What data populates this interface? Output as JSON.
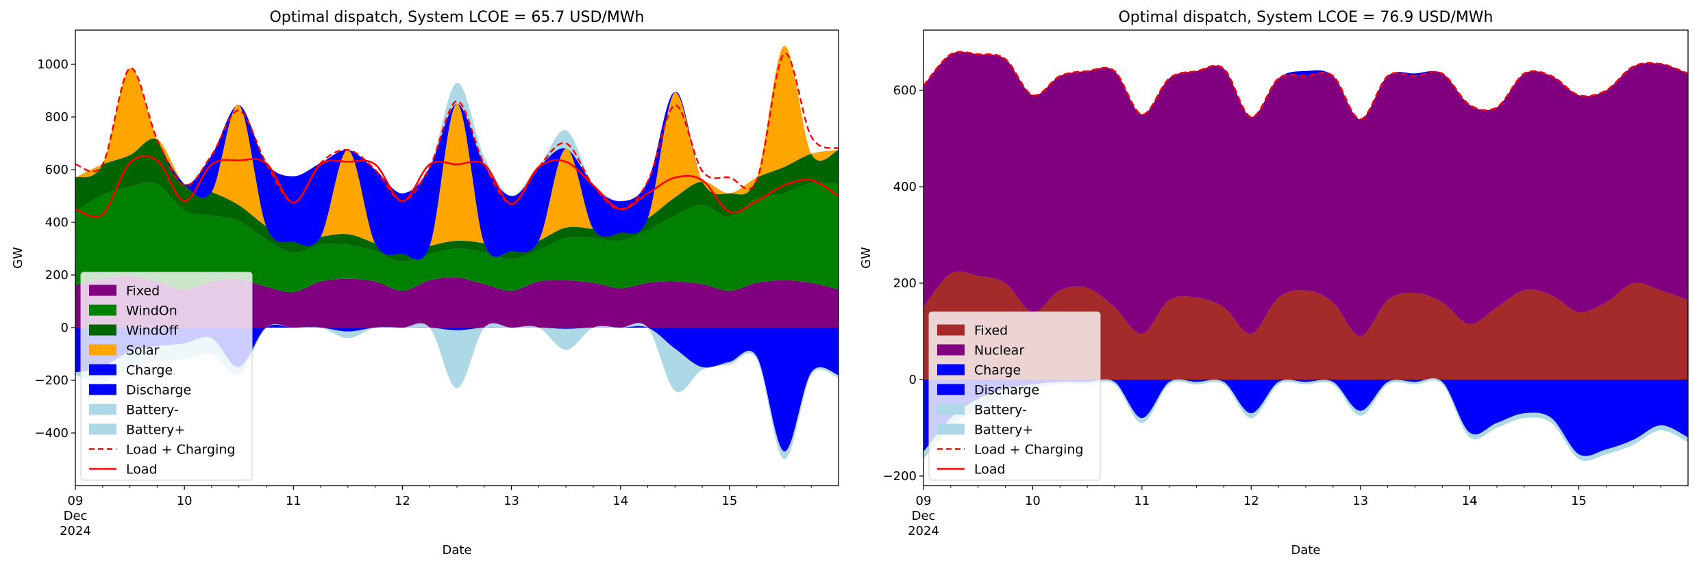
{
  "chart_data": [
    {
      "type": "area",
      "title": "Optimal dispatch, System LCOE = 65.7 USD/MWh",
      "xlabel": "Date",
      "ylabel": "GW",
      "xlim": [
        9,
        16
      ],
      "ylim": [
        -600,
        1130
      ],
      "x_ticks": [
        {
          "value": 9,
          "label": "09",
          "sub": [
            "Dec",
            "2024"
          ]
        },
        {
          "value": 10,
          "label": "10"
        },
        {
          "value": 11,
          "label": "11"
        },
        {
          "value": 12,
          "label": "12"
        },
        {
          "value": 13,
          "label": "13"
        },
        {
          "value": 14,
          "label": "14"
        },
        {
          "value": 15,
          "label": "15"
        }
      ],
      "y_ticks": [
        -400,
        -200,
        0,
        200,
        400,
        600,
        800,
        1000
      ],
      "y_tick_labels": [
        "−400",
        "−200",
        "0",
        "200",
        "400",
        "600",
        "800",
        "1000"
      ],
      "legend_position": "lower-left",
      "legend": [
        {
          "label": "Fixed",
          "kind": "patch",
          "color": "#800080"
        },
        {
          "label": "WindOn",
          "kind": "patch",
          "color": "#008000"
        },
        {
          "label": "WindOff",
          "kind": "patch",
          "color": "#006400"
        },
        {
          "label": "Solar",
          "kind": "patch",
          "color": "#ffa500"
        },
        {
          "label": "Charge",
          "kind": "patch",
          "color": "#0000ff"
        },
        {
          "label": "Discharge",
          "kind": "patch",
          "color": "#0000ff"
        },
        {
          "label": "Battery-",
          "kind": "patch",
          "color": "#add8e6"
        },
        {
          "label": "Battery+",
          "kind": "patch",
          "color": "#add8e6"
        },
        {
          "label": "Load + Charging",
          "kind": "dashed",
          "color": "#ff0000"
        },
        {
          "label": "Load",
          "kind": "line",
          "color": "#ff0000"
        }
      ],
      "x": [
        9.0,
        9.25,
        9.5,
        9.75,
        10.0,
        10.25,
        10.5,
        10.75,
        11.0,
        11.25,
        11.5,
        11.75,
        12.0,
        12.25,
        12.5,
        12.75,
        13.0,
        13.25,
        13.5,
        13.75,
        14.0,
        14.25,
        14.5,
        14.75,
        15.0,
        15.25,
        15.5,
        15.75,
        16.0
      ],
      "positive_stack": [
        {
          "name": "Fixed",
          "color": "#800080",
          "values": [
            160,
            185,
            195,
            175,
            145,
            175,
            185,
            155,
            135,
            175,
            185,
            175,
            140,
            180,
            190,
            165,
            140,
            175,
            180,
            170,
            150,
            170,
            175,
            165,
            140,
            170,
            180,
            170,
            145
          ]
        },
        {
          "name": "WindOn",
          "color": "#008000",
          "values": [
            280,
            320,
            340,
            370,
            300,
            250,
            220,
            180,
            150,
            140,
            130,
            115,
            110,
            100,
            110,
            120,
            120,
            120,
            160,
            170,
            180,
            200,
            250,
            300,
            280,
            320,
            330,
            380,
            400
          ]
        },
        {
          "name": "WindOff",
          "color": "#006400",
          "values": [
            130,
            115,
            120,
            170,
            100,
            90,
            60,
            50,
            40,
            30,
            40,
            30,
            30,
            30,
            30,
            35,
            30,
            35,
            40,
            35,
            30,
            45,
            70,
            90,
            90,
            80,
            100,
            110,
            130
          ]
        },
        {
          "name": "Solar",
          "color": "#ffa500",
          "values": [
            0,
            0,
            330,
            0,
            0,
            0,
            380,
            0,
            0,
            0,
            320,
            0,
            0,
            0,
            520,
            0,
            0,
            0,
            300,
            0,
            0,
            0,
            400,
            0,
            0,
            0,
            460,
            0,
            0
          ]
        },
        {
          "name": "Discharge",
          "color": "#0000ff",
          "values": [
            0,
            0,
            0,
            0,
            0,
            140,
            0,
            240,
            250,
            280,
            0,
            280,
            230,
            300,
            0,
            300,
            210,
            280,
            0,
            170,
            120,
            140,
            0,
            0,
            0,
            0,
            0,
            0,
            0
          ]
        },
        {
          "name": "Battery+",
          "color": "#add8e6",
          "values": [
            0,
            0,
            0,
            0,
            0,
            0,
            0,
            0,
            0,
            0,
            0,
            0,
            0,
            0,
            80,
            30,
            0,
            0,
            70,
            0,
            0,
            0,
            0,
            0,
            0,
            0,
            0,
            0,
            0
          ]
        }
      ],
      "negative_stack": [
        {
          "name": "Charge",
          "color": "#0000ff",
          "values": [
            -170,
            -150,
            -90,
            -70,
            -60,
            -40,
            -150,
            0,
            0,
            0,
            -15,
            0,
            0,
            0,
            -10,
            0,
            0,
            0,
            -5,
            0,
            0,
            0,
            -80,
            -150,
            -130,
            -110,
            -470,
            -170,
            -180
          ]
        },
        {
          "name": "Battery-",
          "color": "#add8e6",
          "values": [
            -10,
            -60,
            -60,
            -60,
            -60,
            -60,
            -30,
            0,
            0,
            0,
            -25,
            0,
            0,
            0,
            -220,
            0,
            0,
            0,
            -80,
            0,
            0,
            0,
            -160,
            -10,
            -10,
            -10,
            -30,
            -10,
            -10
          ]
        }
      ],
      "load_plus_charging": [
        620,
        620,
        985,
        715,
        540,
        655,
        825,
        625,
        475,
        625,
        675,
        600,
        480,
        610,
        860,
        620,
        470,
        610,
        700,
        540,
        450,
        555,
        845,
        595,
        570,
        560,
        1040,
        725,
        680
      ],
      "load": [
        450,
        430,
        625,
        635,
        480,
        620,
        635,
        625,
        475,
        620,
        630,
        620,
        480,
        620,
        620,
        620,
        470,
        610,
        630,
        540,
        450,
        510,
        570,
        560,
        440,
        480,
        540,
        560,
        500
      ]
    },
    {
      "type": "area",
      "title": "Optimal dispatch, System LCOE = 76.9 USD/MWh",
      "xlabel": "Date",
      "ylabel": "GW",
      "xlim": [
        9,
        16
      ],
      "ylim": [
        -220,
        725
      ],
      "x_ticks": [
        {
          "value": 9,
          "label": "09",
          "sub": [
            "Dec",
            "2024"
          ]
        },
        {
          "value": 10,
          "label": "10"
        },
        {
          "value": 11,
          "label": "11"
        },
        {
          "value": 12,
          "label": "12"
        },
        {
          "value": 13,
          "label": "13"
        },
        {
          "value": 14,
          "label": "14"
        },
        {
          "value": 15,
          "label": "15"
        }
      ],
      "y_ticks": [
        -200,
        0,
        200,
        400,
        600
      ],
      "y_tick_labels": [
        "−200",
        "0",
        "200",
        "400",
        "600"
      ],
      "legend_position": "lower-left",
      "legend": [
        {
          "label": "Fixed",
          "kind": "patch",
          "color": "#a52a2a"
        },
        {
          "label": "Nuclear",
          "kind": "patch",
          "color": "#800080"
        },
        {
          "label": "Charge",
          "kind": "patch",
          "color": "#0000ff"
        },
        {
          "label": "Discharge",
          "kind": "patch",
          "color": "#0000ff"
        },
        {
          "label": "Battery-",
          "kind": "patch",
          "color": "#add8e6"
        },
        {
          "label": "Battery+",
          "kind": "patch",
          "color": "#add8e6"
        },
        {
          "label": "Load + Charging",
          "kind": "dashed",
          "color": "#ff0000"
        },
        {
          "label": "Load",
          "kind": "line",
          "color": "#ff0000"
        }
      ],
      "x": [
        9.0,
        9.25,
        9.5,
        9.75,
        10.0,
        10.25,
        10.5,
        10.75,
        11.0,
        11.25,
        11.5,
        11.75,
        12.0,
        12.25,
        12.5,
        12.75,
        13.0,
        13.25,
        13.5,
        13.75,
        14.0,
        14.25,
        14.5,
        14.75,
        15.0,
        15.25,
        15.5,
        15.75,
        16.0
      ],
      "positive_stack": [
        {
          "name": "Fixed",
          "color": "#a52a2a",
          "values": [
            150,
            220,
            215,
            200,
            140,
            185,
            190,
            150,
            95,
            165,
            170,
            150,
            95,
            170,
            185,
            160,
            90,
            165,
            180,
            160,
            115,
            150,
            185,
            175,
            140,
            160,
            200,
            185,
            165
          ]
        },
        {
          "name": "Nuclear",
          "color": "#800080",
          "values": [
            460,
            455,
            460,
            465,
            450,
            445,
            450,
            490,
            455,
            460,
            470,
            495,
            450,
            455,
            445,
            470,
            450,
            465,
            450,
            475,
            455,
            415,
            450,
            455,
            450,
            440,
            450,
            470,
            470
          ]
        },
        {
          "name": "Discharge",
          "color": "#0000ff",
          "values": [
            0,
            0,
            0,
            0,
            0,
            0,
            0,
            0,
            0,
            0,
            0,
            0,
            0,
            0,
            10,
            0,
            0,
            0,
            5,
            0,
            0,
            0,
            0,
            0,
            0,
            0,
            0,
            0,
            0
          ]
        }
      ],
      "negative_stack": [
        {
          "name": "Charge",
          "color": "#0000ff",
          "values": [
            -150,
            -80,
            -40,
            -20,
            -10,
            -5,
            -5,
            -5,
            -80,
            -5,
            -5,
            -5,
            -70,
            -5,
            -5,
            -5,
            -65,
            -5,
            -5,
            -5,
            -110,
            -90,
            -70,
            -80,
            -155,
            -145,
            -125,
            -95,
            -120
          ]
        },
        {
          "name": "Battery-",
          "color": "#add8e6",
          "values": [
            -15,
            -20,
            -20,
            -15,
            -10,
            -5,
            -5,
            -5,
            -10,
            -5,
            -5,
            -5,
            -10,
            -5,
            -5,
            -5,
            -10,
            -5,
            -5,
            -5,
            -10,
            -10,
            -10,
            -10,
            -10,
            -10,
            -10,
            -10,
            -10
          ]
        }
      ],
      "load_plus_charging": [
        610,
        675,
        675,
        665,
        590,
        630,
        640,
        640,
        550,
        625,
        640,
        645,
        545,
        625,
        630,
        630,
        540,
        630,
        630,
        635,
        570,
        565,
        635,
        630,
        590,
        600,
        650,
        655,
        635
      ]
    },
    {}
  ]
}
